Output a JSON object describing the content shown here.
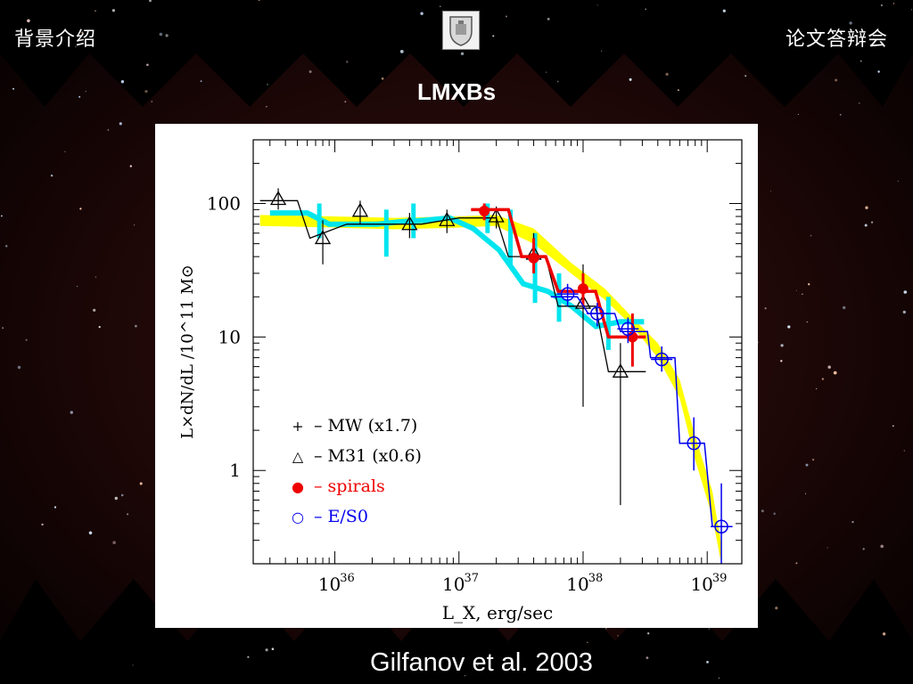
{
  "slide": {
    "header_left": "背景介绍",
    "header_right": "论文答辩会",
    "title": "LMXBs",
    "caption": "Gilfanov et al. 2003"
  },
  "colors": {
    "background": "#000000",
    "yellow_band": "#ffff00",
    "cyan": "#00e5ee",
    "mw": "#000000",
    "m31": "#000000",
    "spirals": "#ee0000",
    "es0": "#0000ee"
  },
  "chart_data": {
    "type": "line",
    "log_x": true,
    "log_y": true,
    "xlabel": "L_X, erg/sec",
    "ylabel": "L×dN/dL /10^11 M⊙",
    "xlim": [
      2.2e+35,
      1.9e+39
    ],
    "ylim": [
      0.2,
      300
    ],
    "x_ticks": [
      {
        "value": 1e+36,
        "base": "10",
        "exp": "36"
      },
      {
        "value": 1e+37,
        "base": "10",
        "exp": "37"
      },
      {
        "value": 1e+38,
        "base": "10",
        "exp": "38"
      },
      {
        "value": 1e+39,
        "base": "10",
        "exp": "39"
      }
    ],
    "y_ticks": [
      {
        "value": 100,
        "label": "100"
      },
      {
        "value": 10,
        "label": "10"
      },
      {
        "value": 1,
        "label": "1"
      }
    ],
    "legend": [
      {
        "symbol": "+",
        "text": "– MW (x1.7)",
        "color": "#000000"
      },
      {
        "symbol": "△",
        "text": "– M31 (x0.6)",
        "color": "#000000"
      },
      {
        "symbol": "●",
        "text": "– spirals",
        "color": "#ee0000"
      },
      {
        "symbol": "○",
        "text": "– E/S0",
        "color": "#0000ee"
      }
    ],
    "legend_position": "bottom-left",
    "series": [
      {
        "name": "E/S0 (yellow band)",
        "style": "band",
        "color": "#ffff00",
        "x": [
          2.5e+35,
          1e+36,
          3e+36,
          1e+37,
          2e+37,
          4e+37,
          8e+37,
          1.5e+38,
          2.5e+38,
          4e+38,
          6e+38,
          8e+38,
          1.1e+39,
          1.3e+39
        ],
        "lower": [
          68,
          66,
          64,
          66,
          68,
          50,
          30,
          19,
          12,
          7,
          3.5,
          1.2,
          0.45,
          0.2
        ],
        "upper": [
          82,
          80,
          78,
          80,
          82,
          65,
          36,
          23,
          14,
          9,
          4.8,
          1.8,
          0.7,
          0.28
        ]
      },
      {
        "name": "spirals (cyan)",
        "style": "step",
        "color": "#00e5ee",
        "x": [
          3e+35,
          6e+35,
          9e+35,
          1.4e+36,
          2.2e+36,
          3.4e+36,
          5.4e+36,
          8.4e+36,
          1.3e+37,
          2.1e+37,
          3.3e+37,
          5.2e+37,
          8.1e+37,
          1.27e+38,
          2e+38,
          3.1e+38
        ],
        "y": [
          85,
          85,
          70,
          70,
          70,
          73,
          75,
          78,
          65,
          45,
          25,
          22,
          17,
          12,
          13,
          13
        ],
        "err_x": [
          7.5e+35,
          2.6e+36,
          4.3e+36,
          1.7e+37,
          2.6e+37,
          4.1e+37,
          6.4e+37,
          1.6e+38
        ],
        "err_lo": [
          55,
          40,
          55,
          60,
          35,
          18,
          13,
          8
        ],
        "err_hi": [
          100,
          90,
          100,
          100,
          90,
          60,
          30,
          20
        ]
      },
      {
        "name": "MW (x1.7)",
        "style": "step",
        "color": "#000000",
        "x": [
          2.5e+35,
          5e+35,
          6.3e+35,
          1.25e+36,
          2.5e+36,
          5e+36,
          1e+37,
          2e+37,
          2.5e+37,
          5e+37,
          6.3e+37,
          1.26e+38,
          1.6e+38,
          3.2e+38
        ],
        "y": [
          105,
          105,
          55,
          70,
          70,
          70,
          78,
          78,
          40,
          40,
          17,
          17,
          5.5,
          5.5
        ]
      },
      {
        "name": "M31 (x0.6)",
        "style": "markers",
        "marker": "triangle",
        "color": "#000000",
        "x": [
          3.5e+35,
          8e+35,
          1.6e+36,
          4e+36,
          8e+36,
          2e+37,
          4e+37,
          1e+38,
          2e+38
        ],
        "y": [
          108,
          55,
          88,
          70,
          75,
          80,
          42,
          18,
          5.5
        ],
        "err_lo": [
          90,
          35,
          70,
          55,
          60,
          65,
          30,
          3,
          0.55
        ],
        "err_hi": [
          130,
          75,
          105,
          85,
          90,
          95,
          60,
          35,
          9
        ]
      },
      {
        "name": "spirals",
        "style": "step+markers",
        "marker": "filled-circle",
        "color": "#ee0000",
        "x": [
          1.25e+37,
          2.5e+37,
          3.2e+37,
          5e+37,
          6.3e+37,
          1.26e+38,
          1.6e+38,
          3.2e+38
        ],
        "y": [
          90,
          90,
          40,
          40,
          22,
          22,
          10,
          10
        ],
        "pts_x": [
          1.6e+37,
          4e+37,
          1e+38,
          2.5e+38
        ],
        "pts_y": [
          88,
          39,
          23,
          10
        ],
        "err_lo": [
          75,
          30,
          17,
          6
        ],
        "err_hi": [
          100,
          55,
          30,
          15
        ]
      },
      {
        "name": "E/S0",
        "style": "step+markers",
        "marker": "open-circle",
        "color": "#0000ee",
        "x": [
          5.5e+37,
          9e+37,
          1.1e+38,
          1.8e+38,
          2e+38,
          3.3e+38,
          3.5e+38,
          5.5e+38,
          6e+38,
          9.5e+38,
          1.1e+39,
          1.6e+39
        ],
        "y": [
          20,
          20,
          15,
          15,
          11,
          11,
          7,
          7,
          1.6,
          1.6,
          0.38,
          0.38
        ],
        "pts_x": [
          7.5e+37,
          1.3e+38,
          2.3e+38,
          4.3e+38,
          7.8e+38,
          1.3e+39
        ],
        "pts_y": [
          21,
          15,
          11.5,
          6.8,
          1.6,
          0.38
        ],
        "err_lo": [
          17,
          12,
          9,
          5.5,
          1.0,
          0.2
        ],
        "err_hi": [
          25,
          18,
          14,
          8.5,
          2.5,
          0.8
        ]
      }
    ]
  }
}
